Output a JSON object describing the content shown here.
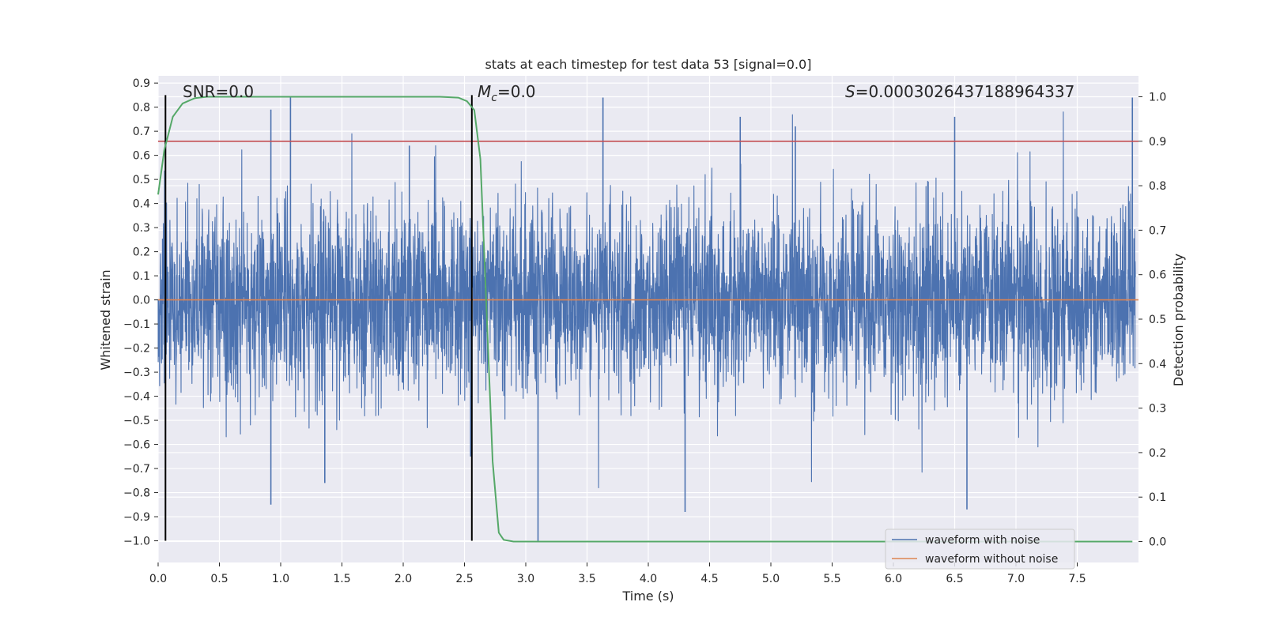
{
  "chart_data": {
    "type": "line",
    "title": "stats at each timestep for test data 53 [signal=0.0]",
    "xlabel": "Time (s)",
    "ylabel": "Whitened strain",
    "ylabel_right": "Detection probability",
    "xlim": [
      0.0,
      8.0
    ],
    "ylim": [
      -1.09,
      0.93
    ],
    "ylim_right": [
      -0.047,
      1.047
    ],
    "grid": true,
    "xticks": [
      0.0,
      0.5,
      1.0,
      1.5,
      2.0,
      2.5,
      3.0,
      3.5,
      4.0,
      4.5,
      5.0,
      5.5,
      6.0,
      6.5,
      7.0,
      7.5
    ],
    "yticks": [
      0.9,
      0.8,
      0.7,
      0.6,
      0.5,
      0.4,
      0.3,
      0.2,
      0.1,
      0.0,
      -0.1,
      -0.2,
      -0.3,
      -0.4,
      -0.5,
      -0.6,
      -0.7,
      -0.8,
      -0.9,
      -1.0
    ],
    "yticks_right": [
      1.0,
      0.9,
      0.8,
      0.7,
      0.6,
      0.5,
      0.4,
      0.3,
      0.2,
      0.1,
      0.0
    ],
    "xtick_labels": [
      "0.0",
      "0.5",
      "1.0",
      "1.5",
      "2.0",
      "2.5",
      "3.0",
      "3.5",
      "4.0",
      "4.5",
      "5.0",
      "5.5",
      "6.0",
      "6.5",
      "7.0",
      "7.5"
    ],
    "ytick_labels": [
      "0.9",
      "0.8",
      "0.7",
      "0.6",
      "0.5",
      "0.4",
      "0.3",
      "0.2",
      "0.1",
      "0.0",
      "−0.1",
      "−0.2",
      "−0.3",
      "−0.4",
      "−0.5",
      "−0.6",
      "−0.7",
      "−0.8",
      "−0.9",
      "−1.0"
    ],
    "ytick_labels_right": [
      "1.0",
      "0.9",
      "0.8",
      "0.7",
      "0.6",
      "0.5",
      "0.4",
      "0.3",
      "0.2",
      "0.1",
      "0.0"
    ],
    "annotations": {
      "snr": "SNR=0.0",
      "mc_symbol": "M",
      "mc_sub": "c",
      "mc_value": "=0.0",
      "s_symbol": "S",
      "s_value": "=0.0003026437188964337"
    },
    "vertical_markers": [
      0.06,
      2.56
    ],
    "vertical_marker_range": [
      -1.0,
      0.85
    ],
    "threshold_right": 0.9,
    "series": [
      {
        "name": "waveform with noise",
        "color": "#4c72b0",
        "description": "whitened noise samples, roughly symmetric between about -0.85 and 0.85",
        "envelope_amplitude": 0.45,
        "spikes": [
          [
            0.92,
            0.79
          ],
          [
            1.08,
            0.84
          ],
          [
            0.92,
            -0.85
          ],
          [
            1.36,
            -0.76
          ],
          [
            2.05,
            0.64
          ],
          [
            2.55,
            -0.65
          ],
          [
            3.1,
            -1.0
          ],
          [
            3.63,
            0.84
          ],
          [
            4.3,
            -0.88
          ],
          [
            4.75,
            0.76
          ],
          [
            5.2,
            0.72
          ],
          [
            6.5,
            0.76
          ],
          [
            6.6,
            -0.87
          ],
          [
            7.95,
            0.84
          ]
        ]
      },
      {
        "name": "waveform without noise",
        "color": "#dd8452",
        "x": [
          0.0,
          8.0
        ],
        "y": [
          0.0,
          0.0
        ]
      },
      {
        "name": "Detection probability",
        "color": "#55a868",
        "axis": "right",
        "x": [
          0.0,
          0.05,
          0.12,
          0.2,
          0.3,
          0.4,
          0.5,
          1.0,
          1.5,
          2.0,
          2.3,
          2.45,
          2.52,
          2.58,
          2.63,
          2.68,
          2.73,
          2.78,
          2.82,
          2.9,
          3.0,
          4.0,
          5.0,
          6.0,
          7.0,
          7.95
        ],
        "y": [
          0.78,
          0.88,
          0.955,
          0.985,
          0.997,
          1.0,
          1.0,
          1.0,
          1.0,
          1.0,
          1.0,
          0.998,
          0.99,
          0.97,
          0.86,
          0.52,
          0.18,
          0.02,
          0.004,
          0.0,
          0.0,
          0.0,
          0.0,
          0.0,
          0.0,
          0.0
        ]
      }
    ],
    "legend": {
      "position": "lower-right",
      "entries": [
        "waveform with noise",
        "waveform without noise"
      ]
    },
    "colors": {
      "plot_background": "#eaeaf2",
      "grid": "#ffffff",
      "threshold": "#c44e52",
      "marker": "#000000"
    }
  }
}
